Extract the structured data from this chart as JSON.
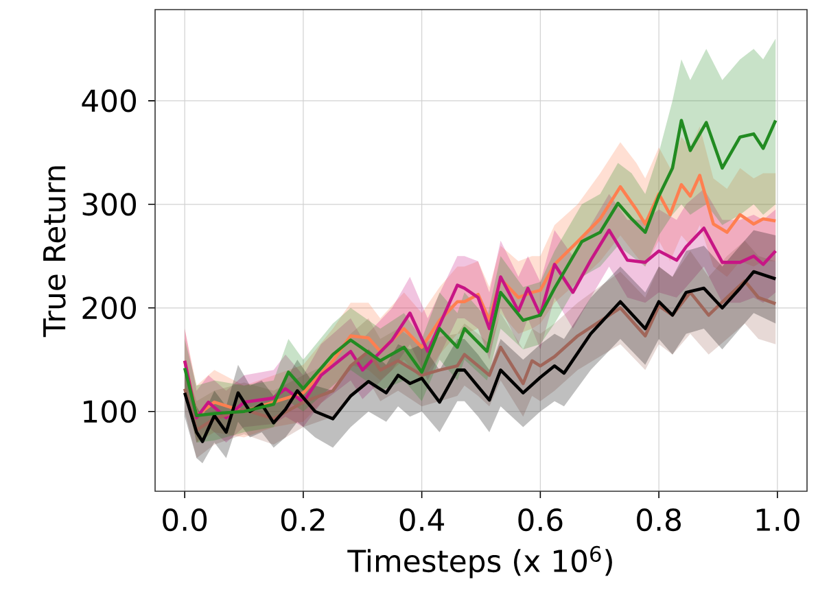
{
  "chart_data": {
    "type": "line",
    "xlabel": "Timesteps (x 10$^{6}$)",
    "ylabel": "True Return",
    "xlim": [
      -0.05,
      1.05
    ],
    "ylim": [
      23,
      488
    ],
    "xticks": [
      {
        "value": 0,
        "label": "0.0"
      },
      {
        "value": 0.2,
        "label": "0.2"
      },
      {
        "value": 0.4,
        "label": "0.4"
      },
      {
        "value": 0.6,
        "label": "0.6"
      },
      {
        "value": 0.8,
        "label": "0.8"
      },
      {
        "value": 1.0,
        "label": "1.0"
      }
    ],
    "yticks": [
      100,
      200,
      300,
      400
    ],
    "grid": true,
    "marker": "none",
    "line_style": "solid",
    "series": [
      {
        "color": "#ff7f50",
        "x": [
          0,
          0.02,
          0.05,
          0.1,
          0.15,
          0.2,
          0.25,
          0.28,
          0.31,
          0.33,
          0.37,
          0.4,
          0.43,
          0.46,
          0.472,
          0.495,
          0.514,
          0.533,
          0.563,
          0.586,
          0.6,
          0.624,
          0.663,
          0.701,
          0.735,
          0.762,
          0.777,
          0.8,
          0.819,
          0.838,
          0.853,
          0.869,
          0.892,
          0.915,
          0.937,
          0.96,
          0.976,
          0.997
        ],
        "values": [
          149,
          96,
          109,
          100,
          109,
          118,
          149,
          173,
          171,
          158,
          180,
          162,
          188,
          206,
          206,
          213,
          188,
          228,
          210,
          215,
          217,
          242,
          264,
          286,
          317,
          295,
          281,
          310,
          290,
          319,
          308,
          328,
          281,
          273,
          290,
          281,
          286,
          284
        ],
        "lower": [
          120,
          70,
          80,
          75,
          85,
          90,
          120,
          145,
          140,
          130,
          150,
          130,
          155,
          175,
          175,
          180,
          155,
          195,
          175,
          180,
          185,
          205,
          225,
          245,
          270,
          250,
          240,
          265,
          245,
          270,
          260,
          280,
          240,
          230,
          245,
          240,
          245,
          245
        ],
        "upper": [
          180,
          125,
          140,
          125,
          135,
          145,
          180,
          205,
          205,
          190,
          215,
          195,
          220,
          240,
          240,
          245,
          220,
          260,
          245,
          250,
          250,
          280,
          300,
          330,
          360,
          340,
          325,
          355,
          335,
          365,
          355,
          375,
          325,
          315,
          335,
          325,
          330,
          330
        ]
      },
      {
        "color": "#c71585",
        "x": [
          0,
          0.02,
          0.04,
          0.07,
          0.1,
          0.15,
          0.17,
          0.2,
          0.23,
          0.28,
          0.3,
          0.35,
          0.38,
          0.41,
          0.46,
          0.472,
          0.495,
          0.514,
          0.533,
          0.563,
          0.579,
          0.6,
          0.624,
          0.655,
          0.685,
          0.716,
          0.747,
          0.777,
          0.8,
          0.83,
          0.846,
          0.876,
          0.907,
          0.937,
          0.96,
          0.976,
          0.997
        ],
        "values": [
          149,
          94,
          109,
          94,
          109,
          113,
          122,
          109,
          135,
          158,
          140,
          169,
          195,
          158,
          222,
          219,
          210,
          180,
          230,
          197,
          219,
          193,
          242,
          215,
          246,
          275,
          246,
          244,
          255,
          246,
          259,
          277,
          244,
          244,
          250,
          242,
          255
        ],
        "lower": [
          125,
          70,
          85,
          70,
          85,
          88,
          95,
          85,
          108,
          130,
          112,
          140,
          165,
          130,
          190,
          190,
          180,
          150,
          200,
          165,
          190,
          160,
          210,
          180,
          210,
          240,
          210,
          205,
          215,
          210,
          220,
          240,
          205,
          205,
          210,
          205,
          215
        ],
        "upper": [
          180,
          120,
          135,
          120,
          135,
          140,
          155,
          135,
          165,
          190,
          170,
          200,
          230,
          190,
          250,
          250,
          245,
          215,
          265,
          230,
          250,
          225,
          275,
          250,
          280,
          310,
          285,
          285,
          295,
          285,
          300,
          315,
          285,
          285,
          290,
          285,
          295
        ]
      },
      {
        "color": "#a0665a",
        "x": [
          0,
          0.02,
          0.05,
          0.1,
          0.15,
          0.2,
          0.25,
          0.28,
          0.31,
          0.33,
          0.36,
          0.4,
          0.43,
          0.46,
          0.472,
          0.495,
          0.514,
          0.533,
          0.571,
          0.586,
          0.6,
          0.624,
          0.663,
          0.735,
          0.777,
          0.8,
          0.823,
          0.853,
          0.884,
          0.915,
          0.945,
          0.968,
          0.997
        ],
        "values": [
          122,
          82,
          93,
          102,
          93,
          109,
          120,
          144,
          158,
          140,
          149,
          135,
          140,
          144,
          155,
          144,
          135,
          162,
          127,
          149,
          144,
          153,
          173,
          200,
          173,
          202,
          193,
          215,
          193,
          210,
          226,
          210,
          204
        ],
        "lower": [
          100,
          55,
          68,
          78,
          68,
          85,
          95,
          115,
          130,
          110,
          120,
          105,
          110,
          115,
          125,
          115,
          105,
          130,
          95,
          115,
          110,
          120,
          140,
          165,
          140,
          165,
          155,
          175,
          155,
          170,
          185,
          170,
          165
        ],
        "upper": [
          145,
          110,
          120,
          128,
          120,
          135,
          148,
          175,
          190,
          170,
          180,
          165,
          172,
          175,
          185,
          175,
          165,
          195,
          160,
          180,
          175,
          185,
          205,
          235,
          210,
          240,
          230,
          255,
          230,
          250,
          265,
          250,
          245
        ]
      },
      {
        "color": "#000000",
        "x": [
          0,
          0.02,
          0.03,
          0.05,
          0.07,
          0.09,
          0.11,
          0.13,
          0.15,
          0.17,
          0.19,
          0.22,
          0.25,
          0.28,
          0.31,
          0.34,
          0.36,
          0.38,
          0.4,
          0.43,
          0.46,
          0.472,
          0.495,
          0.514,
          0.533,
          0.571,
          0.6,
          0.624,
          0.64,
          0.685,
          0.735,
          0.777,
          0.8,
          0.823,
          0.846,
          0.876,
          0.907,
          0.937,
          0.96,
          0.997
        ],
        "values": [
          118,
          80,
          71,
          96,
          80,
          118,
          100,
          107,
          89,
          102,
          120,
          100,
          93,
          115,
          129,
          118,
          135,
          127,
          132,
          109,
          140,
          140,
          124,
          111,
          140,
          118,
          133,
          144,
          137,
          175,
          206,
          180,
          206,
          193,
          215,
          219,
          200,
          219,
          235,
          228
        ],
        "lower": [
          95,
          55,
          50,
          70,
          55,
          90,
          75,
          80,
          65,
          75,
          90,
          75,
          65,
          85,
          100,
          90,
          105,
          95,
          100,
          80,
          110,
          110,
          95,
          80,
          105,
          85,
          100,
          110,
          105,
          140,
          170,
          145,
          170,
          155,
          175,
          180,
          160,
          180,
          195,
          185
        ],
        "upper": [
          140,
          105,
          95,
          120,
          105,
          145,
          125,
          130,
          115,
          130,
          150,
          125,
          120,
          145,
          160,
          145,
          165,
          160,
          165,
          140,
          170,
          170,
          155,
          140,
          170,
          150,
          165,
          175,
          170,
          210,
          240,
          215,
          240,
          230,
          255,
          260,
          240,
          260,
          275,
          270
        ]
      },
      {
        "color": "#228b22",
        "x": [
          0,
          0.02,
          0.05,
          0.1,
          0.15,
          0.175,
          0.2,
          0.25,
          0.28,
          0.33,
          0.37,
          0.4,
          0.43,
          0.46,
          0.472,
          0.51,
          0.533,
          0.571,
          0.6,
          0.624,
          0.67,
          0.701,
          0.731,
          0.754,
          0.777,
          0.8,
          0.823,
          0.838,
          0.853,
          0.88,
          0.907,
          0.937,
          0.96,
          0.976,
          0.997
        ],
        "values": [
          142,
          96,
          98,
          100,
          107,
          138,
          122,
          155,
          169,
          149,
          162,
          138,
          180,
          162,
          180,
          158,
          215,
          188,
          193,
          219,
          264,
          273,
          301,
          286,
          273,
          308,
          335,
          381,
          352,
          379,
          335,
          365,
          368,
          354,
          381
        ],
        "lower": [
          120,
          70,
          72,
          80,
          85,
          110,
          100,
          125,
          140,
          120,
          130,
          110,
          150,
          130,
          150,
          130,
          180,
          160,
          165,
          185,
          230,
          240,
          260,
          250,
          240,
          270,
          290,
          300,
          290,
          300,
          280,
          290,
          300,
          290,
          300
        ],
        "upper": [
          170,
          125,
          130,
          125,
          130,
          170,
          150,
          185,
          200,
          180,
          195,
          170,
          215,
          195,
          215,
          190,
          250,
          220,
          225,
          255,
          300,
          310,
          340,
          330,
          310,
          350,
          400,
          440,
          420,
          450,
          420,
          440,
          450,
          440,
          460
        ]
      }
    ]
  }
}
